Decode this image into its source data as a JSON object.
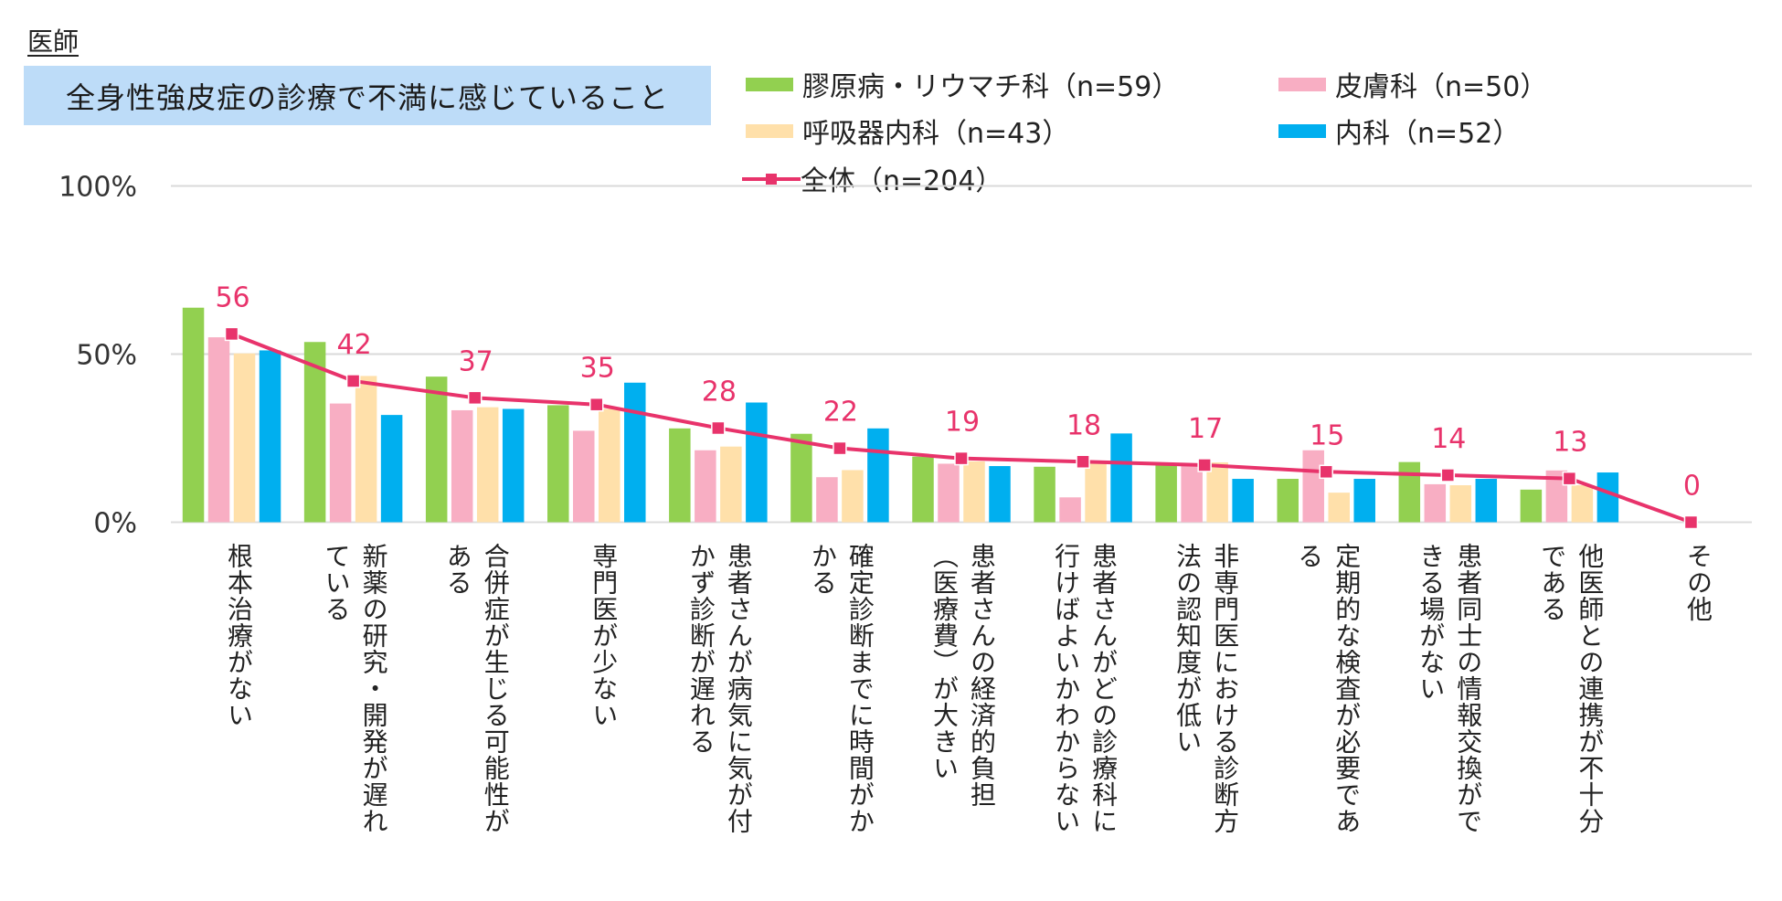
{
  "header": {
    "role_label": "医師",
    "title": "全身性強皮症の診療で不満に感じていること"
  },
  "legend": [
    {
      "label": "膠原病・リウマチ科（n=59）",
      "type": "bar",
      "color": "#92D050"
    },
    {
      "label": "皮膚科（n=50）",
      "type": "bar",
      "color": "#F8AEC3"
    },
    {
      "label": "呼吸器内科（n=43）",
      "type": "bar",
      "color": "#FFE0AA"
    },
    {
      "label": "内科（n=52）",
      "type": "bar",
      "color": "#00AFEF"
    },
    {
      "label": "全体（n=204）",
      "type": "line",
      "color": "#E8336B"
    }
  ],
  "chart_data": {
    "type": "bar",
    "title": "全身性強皮症の診療で不満に感じていること",
    "xlabel": "",
    "ylabel": "",
    "ylim": [
      0,
      100
    ],
    "yticks": [
      "0%",
      "50%",
      "100%"
    ],
    "ytick_values": [
      0,
      50,
      100
    ],
    "grid": true,
    "legend_position": "top-right",
    "categories": [
      "根本治療がない",
      "新薬の研究・開発が遅れている",
      "合併症が生じる可能性がある",
      "専門医が少ない",
      "患者さんが病気に気が付かず診断が遅れる",
      "確定診断までに時間がかかる",
      "患者さんの経済的負担（医療費）が大きい",
      "患者さんがどの診療科に行けばよいかわからない",
      "非専門医における診断方法の認知度が低い",
      "定期的な検査が必要である",
      "患者同士の情報交換ができる場がない",
      "他医師との連携が不十分である",
      "その他"
    ],
    "category_lines": [
      [
        "根本治療がない"
      ],
      [
        "新薬の研究・開発が遅れ",
        "ている"
      ],
      [
        "合併症が生じる可能性が",
        "ある"
      ],
      [
        "専門医が少ない"
      ],
      [
        "患者さんが病気に気が付",
        "かず診断が遅れる"
      ],
      [
        "確定診断までに時間がか",
        "かる"
      ],
      [
        "患者さんの経済的負担",
        "（医療費）が大きい"
      ],
      [
        "患者さんがどの診療科に",
        "行けばよいかわからない"
      ],
      [
        "非専門医における診断方",
        "法の認知度が低い"
      ],
      [
        "定期的な検査が必要であ",
        "る"
      ],
      [
        "患者同士の情報交換がで",
        "きる場がない"
      ],
      [
        "他医師との連携が不十分",
        "である"
      ],
      [
        "その他"
      ]
    ],
    "series": [
      {
        "name": "膠原病・リウマチ科（n=59）",
        "type": "bar",
        "color": "#92D050",
        "values": [
          63.8,
          53.6,
          43.3,
          34.8,
          27.9,
          26.3,
          19.5,
          16.5,
          17.0,
          12.9,
          17.9,
          9.7,
          0
        ]
      },
      {
        "name": "皮膚科（n=50）",
        "type": "bar",
        "color": "#F8AEC3",
        "values": [
          55.0,
          35.3,
          33.3,
          27.2,
          21.4,
          13.4,
          17.4,
          7.4,
          17.0,
          21.4,
          11.3,
          15.4,
          0
        ]
      },
      {
        "name": "呼吸器内科（n=43）",
        "type": "bar",
        "color": "#FFE0AA",
        "values": [
          50.2,
          43.5,
          34.2,
          33.7,
          22.5,
          15.5,
          18.1,
          17.6,
          17.8,
          8.8,
          11.0,
          11.0,
          0
        ]
      },
      {
        "name": "内科（n=52）",
        "type": "bar",
        "color": "#00AFEF",
        "values": [
          51.1,
          31.9,
          33.7,
          41.5,
          35.6,
          27.9,
          16.7,
          26.4,
          12.9,
          12.9,
          12.9,
          14.8,
          0
        ]
      },
      {
        "name": "全体（n=204）",
        "type": "line",
        "color": "#E8336B",
        "values": [
          56,
          42,
          37,
          35,
          28,
          22,
          19,
          18,
          17,
          15,
          14,
          13,
          0
        ],
        "data_labels": [
          "56",
          "42",
          "37",
          "35",
          "28",
          "22",
          "19",
          "18",
          "17",
          "15",
          "14",
          "13",
          "0"
        ]
      }
    ]
  }
}
